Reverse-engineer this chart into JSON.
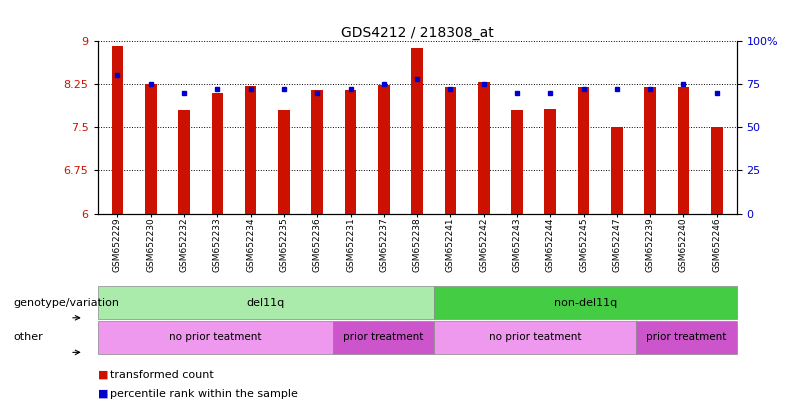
{
  "title": "GDS4212 / 218308_at",
  "samples": [
    "GSM652229",
    "GSM652230",
    "GSM652232",
    "GSM652233",
    "GSM652234",
    "GSM652235",
    "GSM652236",
    "GSM652231",
    "GSM652237",
    "GSM652238",
    "GSM652241",
    "GSM652242",
    "GSM652243",
    "GSM652244",
    "GSM652245",
    "GSM652247",
    "GSM652239",
    "GSM652240",
    "GSM652246"
  ],
  "bar_values": [
    8.9,
    8.25,
    7.8,
    8.1,
    8.22,
    7.8,
    8.15,
    8.15,
    8.23,
    8.87,
    8.2,
    8.28,
    7.8,
    7.82,
    8.2,
    7.5,
    8.2,
    8.2,
    7.5
  ],
  "percentile_values_pct": [
    80,
    75,
    70,
    72,
    72,
    72,
    70,
    72,
    75,
    78,
    72,
    75,
    70,
    70,
    72,
    72,
    72,
    75,
    70
  ],
  "bar_color": "#CC1100",
  "percentile_color": "#0000CC",
  "ylim_left": [
    6.0,
    9.0
  ],
  "yticks_left": [
    6.0,
    6.75,
    7.5,
    8.25,
    9.0
  ],
  "ytick_labels_left": [
    "6",
    "6.75",
    "7.5",
    "8.25",
    "9"
  ],
  "ylim_right": [
    0,
    100
  ],
  "yticks_right": [
    0,
    25,
    50,
    75,
    100
  ],
  "ytick_labels_right": [
    "0",
    "25",
    "50",
    "75",
    "100%"
  ],
  "geno_groups": [
    {
      "start": 0,
      "end": 9,
      "label": "del11q",
      "color": "#AAEAAA"
    },
    {
      "start": 10,
      "end": 18,
      "label": "non-del11q",
      "color": "#44CC44"
    }
  ],
  "treatment_groups": [
    {
      "start": 0,
      "end": 6,
      "label": "no prior teatment",
      "color": "#EE99EE"
    },
    {
      "start": 7,
      "end": 9,
      "label": "prior treatment",
      "color": "#CC55CC"
    },
    {
      "start": 10,
      "end": 15,
      "label": "no prior teatment",
      "color": "#EE99EE"
    },
    {
      "start": 16,
      "end": 18,
      "label": "prior treatment",
      "color": "#CC55CC"
    }
  ],
  "label_genotype": "genotype/variation",
  "label_other": "other",
  "legend_bar": "transformed count",
  "legend_percentile": "percentile rank within the sample",
  "background_color": "#ffffff"
}
